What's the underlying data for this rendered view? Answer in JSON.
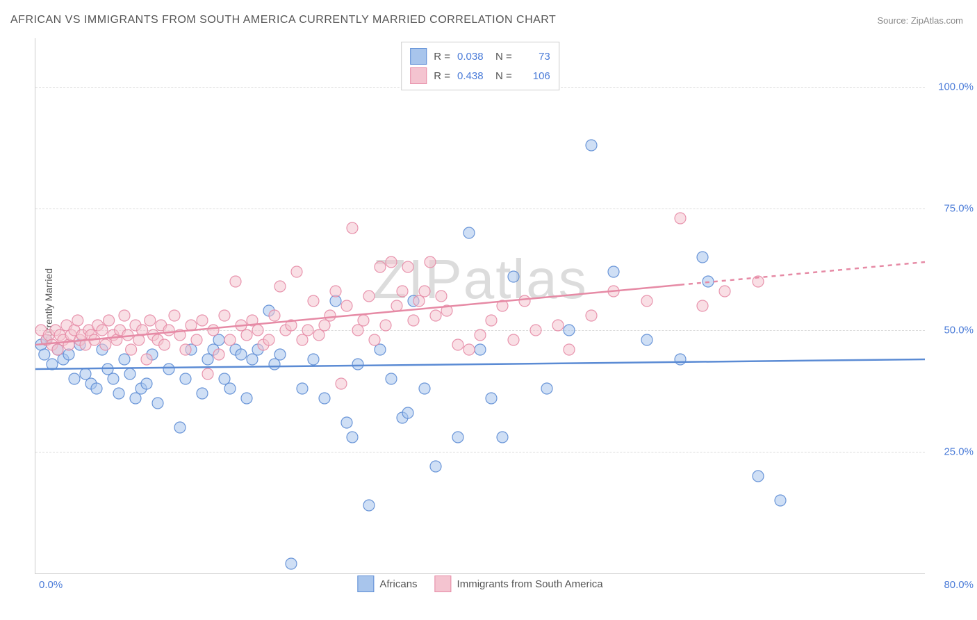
{
  "title": "AFRICAN VS IMMIGRANTS FROM SOUTH AMERICA CURRENTLY MARRIED CORRELATION CHART",
  "source": "Source: ZipAtlas.com",
  "watermark": "ZIPatlas",
  "chart": {
    "type": "scatter",
    "background_color": "#ffffff",
    "grid_color": "#dcdcdc",
    "axis_color": "#cccccc",
    "label_color": "#4a7bd8",
    "title_color": "#555555",
    "title_fontsize": 16,
    "label_fontsize": 15,
    "marker_radius": 8,
    "marker_opacity": 0.55,
    "marker_stroke_opacity": 0.9,
    "trend_line_width": 2.5,
    "xlim": [
      0,
      80
    ],
    "ylim": [
      0,
      110
    ],
    "y_ticks": [
      25,
      50,
      75,
      100
    ],
    "y_tick_labels": [
      "25.0%",
      "50.0%",
      "75.0%",
      "100.0%"
    ],
    "x_tick_labels": {
      "left": "0.0%",
      "right": "80.0%"
    },
    "y_axis_title": "Currently Married",
    "legend_top": [
      {
        "swatch_fill": "#a8c5ec",
        "swatch_stroke": "#5b8bd4",
        "r_label": "R =",
        "r_value": "0.038",
        "n_label": "N =",
        "n_value": "73"
      },
      {
        "swatch_fill": "#f4c4d0",
        "swatch_stroke": "#e68aa5",
        "r_label": "R =",
        "r_value": "0.438",
        "n_label": "N =",
        "n_value": "106"
      }
    ],
    "legend_bottom": [
      {
        "swatch_fill": "#a8c5ec",
        "swatch_stroke": "#5b8bd4",
        "label": "Africans"
      },
      {
        "swatch_fill": "#f4c4d0",
        "swatch_stroke": "#e68aa5",
        "label": "Immigrants from South America"
      }
    ],
    "series": [
      {
        "name": "Africans",
        "fill": "#a8c5ec",
        "stroke": "#5b8bd4",
        "trend": {
          "x1": 0,
          "y1": 42,
          "x2": 80,
          "y2": 44,
          "dash_from_x": 80
        },
        "points": [
          [
            0.5,
            47
          ],
          [
            0.8,
            45
          ],
          [
            1,
            48
          ],
          [
            1.5,
            43
          ],
          [
            2,
            46
          ],
          [
            2.5,
            44
          ],
          [
            3,
            45
          ],
          [
            3.5,
            40
          ],
          [
            4,
            47
          ],
          [
            4.5,
            41
          ],
          [
            5,
            39
          ],
          [
            5.5,
            38
          ],
          [
            6,
            46
          ],
          [
            6.5,
            42
          ],
          [
            7,
            40
          ],
          [
            7.5,
            37
          ],
          [
            8,
            44
          ],
          [
            8.5,
            41
          ],
          [
            9,
            36
          ],
          [
            9.5,
            38
          ],
          [
            10,
            39
          ],
          [
            10.5,
            45
          ],
          [
            11,
            35
          ],
          [
            12,
            42
          ],
          [
            13,
            30
          ],
          [
            13.5,
            40
          ],
          [
            14,
            46
          ],
          [
            15,
            37
          ],
          [
            15.5,
            44
          ],
          [
            16,
            46
          ],
          [
            16.5,
            48
          ],
          [
            17,
            40
          ],
          [
            17.5,
            38
          ],
          [
            18,
            46
          ],
          [
            18.5,
            45
          ],
          [
            19,
            36
          ],
          [
            19.5,
            44
          ],
          [
            20,
            46
          ],
          [
            21,
            54
          ],
          [
            21.5,
            43
          ],
          [
            22,
            45
          ],
          [
            23,
            2
          ],
          [
            24,
            38
          ],
          [
            25,
            44
          ],
          [
            26,
            36
          ],
          [
            27,
            56
          ],
          [
            28,
            31
          ],
          [
            28.5,
            28
          ],
          [
            29,
            43
          ],
          [
            30,
            14
          ],
          [
            31,
            46
          ],
          [
            32,
            40
          ],
          [
            33,
            32
          ],
          [
            33.5,
            33
          ],
          [
            34,
            56
          ],
          [
            35,
            38
          ],
          [
            36,
            22
          ],
          [
            38,
            28
          ],
          [
            39,
            70
          ],
          [
            40,
            46
          ],
          [
            41,
            36
          ],
          [
            42,
            28
          ],
          [
            43,
            61
          ],
          [
            46,
            38
          ],
          [
            48,
            50
          ],
          [
            50,
            88
          ],
          [
            52,
            62
          ],
          [
            55,
            48
          ],
          [
            58,
            44
          ],
          [
            60,
            65
          ],
          [
            60.5,
            60
          ],
          [
            65,
            20
          ],
          [
            67,
            15
          ]
        ]
      },
      {
        "name": "Immigrants from South America",
        "fill": "#f4c4d0",
        "stroke": "#e68aa5",
        "trend": {
          "x1": 0,
          "y1": 47,
          "x2": 80,
          "y2": 64,
          "dash_from_x": 58
        },
        "points": [
          [
            0.5,
            50
          ],
          [
            1,
            48
          ],
          [
            1.2,
            49
          ],
          [
            1.5,
            47
          ],
          [
            1.8,
            50
          ],
          [
            2,
            46
          ],
          [
            2.2,
            49
          ],
          [
            2.5,
            48
          ],
          [
            2.8,
            51
          ],
          [
            3,
            47
          ],
          [
            3.2,
            49
          ],
          [
            3.5,
            50
          ],
          [
            3.8,
            52
          ],
          [
            4,
            48
          ],
          [
            4.2,
            49
          ],
          [
            4.5,
            47
          ],
          [
            4.8,
            50
          ],
          [
            5,
            49
          ],
          [
            5.3,
            48
          ],
          [
            5.6,
            51
          ],
          [
            6,
            50
          ],
          [
            6.3,
            47
          ],
          [
            6.6,
            52
          ],
          [
            7,
            49
          ],
          [
            7.3,
            48
          ],
          [
            7.6,
            50
          ],
          [
            8,
            53
          ],
          [
            8.3,
            49
          ],
          [
            8.6,
            46
          ],
          [
            9,
            51
          ],
          [
            9.3,
            48
          ],
          [
            9.6,
            50
          ],
          [
            10,
            44
          ],
          [
            10.3,
            52
          ],
          [
            10.6,
            49
          ],
          [
            11,
            48
          ],
          [
            11.3,
            51
          ],
          [
            11.6,
            47
          ],
          [
            12,
            50
          ],
          [
            12.5,
            53
          ],
          [
            13,
            49
          ],
          [
            13.5,
            46
          ],
          [
            14,
            51
          ],
          [
            14.5,
            48
          ],
          [
            15,
            52
          ],
          [
            15.5,
            41
          ],
          [
            16,
            50
          ],
          [
            16.5,
            45
          ],
          [
            17,
            53
          ],
          [
            17.5,
            48
          ],
          [
            18,
            60
          ],
          [
            18.5,
            51
          ],
          [
            19,
            49
          ],
          [
            19.5,
            52
          ],
          [
            20,
            50
          ],
          [
            20.5,
            47
          ],
          [
            21,
            48
          ],
          [
            21.5,
            53
          ],
          [
            22,
            59
          ],
          [
            22.5,
            50
          ],
          [
            23,
            51
          ],
          [
            23.5,
            62
          ],
          [
            24,
            48
          ],
          [
            24.5,
            50
          ],
          [
            25,
            56
          ],
          [
            25.5,
            49
          ],
          [
            26,
            51
          ],
          [
            26.5,
            53
          ],
          [
            27,
            58
          ],
          [
            27.5,
            39
          ],
          [
            28,
            55
          ],
          [
            28.5,
            71
          ],
          [
            29,
            50
          ],
          [
            29.5,
            52
          ],
          [
            30,
            57
          ],
          [
            30.5,
            48
          ],
          [
            31,
            63
          ],
          [
            31.5,
            51
          ],
          [
            32,
            64
          ],
          [
            32.5,
            55
          ],
          [
            33,
            58
          ],
          [
            33.5,
            63
          ],
          [
            34,
            52
          ],
          [
            34.5,
            56
          ],
          [
            35,
            58
          ],
          [
            35.5,
            64
          ],
          [
            36,
            53
          ],
          [
            36.5,
            57
          ],
          [
            37,
            54
          ],
          [
            38,
            47
          ],
          [
            39,
            46
          ],
          [
            40,
            49
          ],
          [
            41,
            52
          ],
          [
            42,
            55
          ],
          [
            43,
            48
          ],
          [
            44,
            56
          ],
          [
            45,
            50
          ],
          [
            47,
            51
          ],
          [
            48,
            46
          ],
          [
            50,
            53
          ],
          [
            52,
            58
          ],
          [
            55,
            56
          ],
          [
            58,
            73
          ],
          [
            60,
            55
          ],
          [
            62,
            58
          ],
          [
            65,
            60
          ]
        ]
      }
    ]
  }
}
